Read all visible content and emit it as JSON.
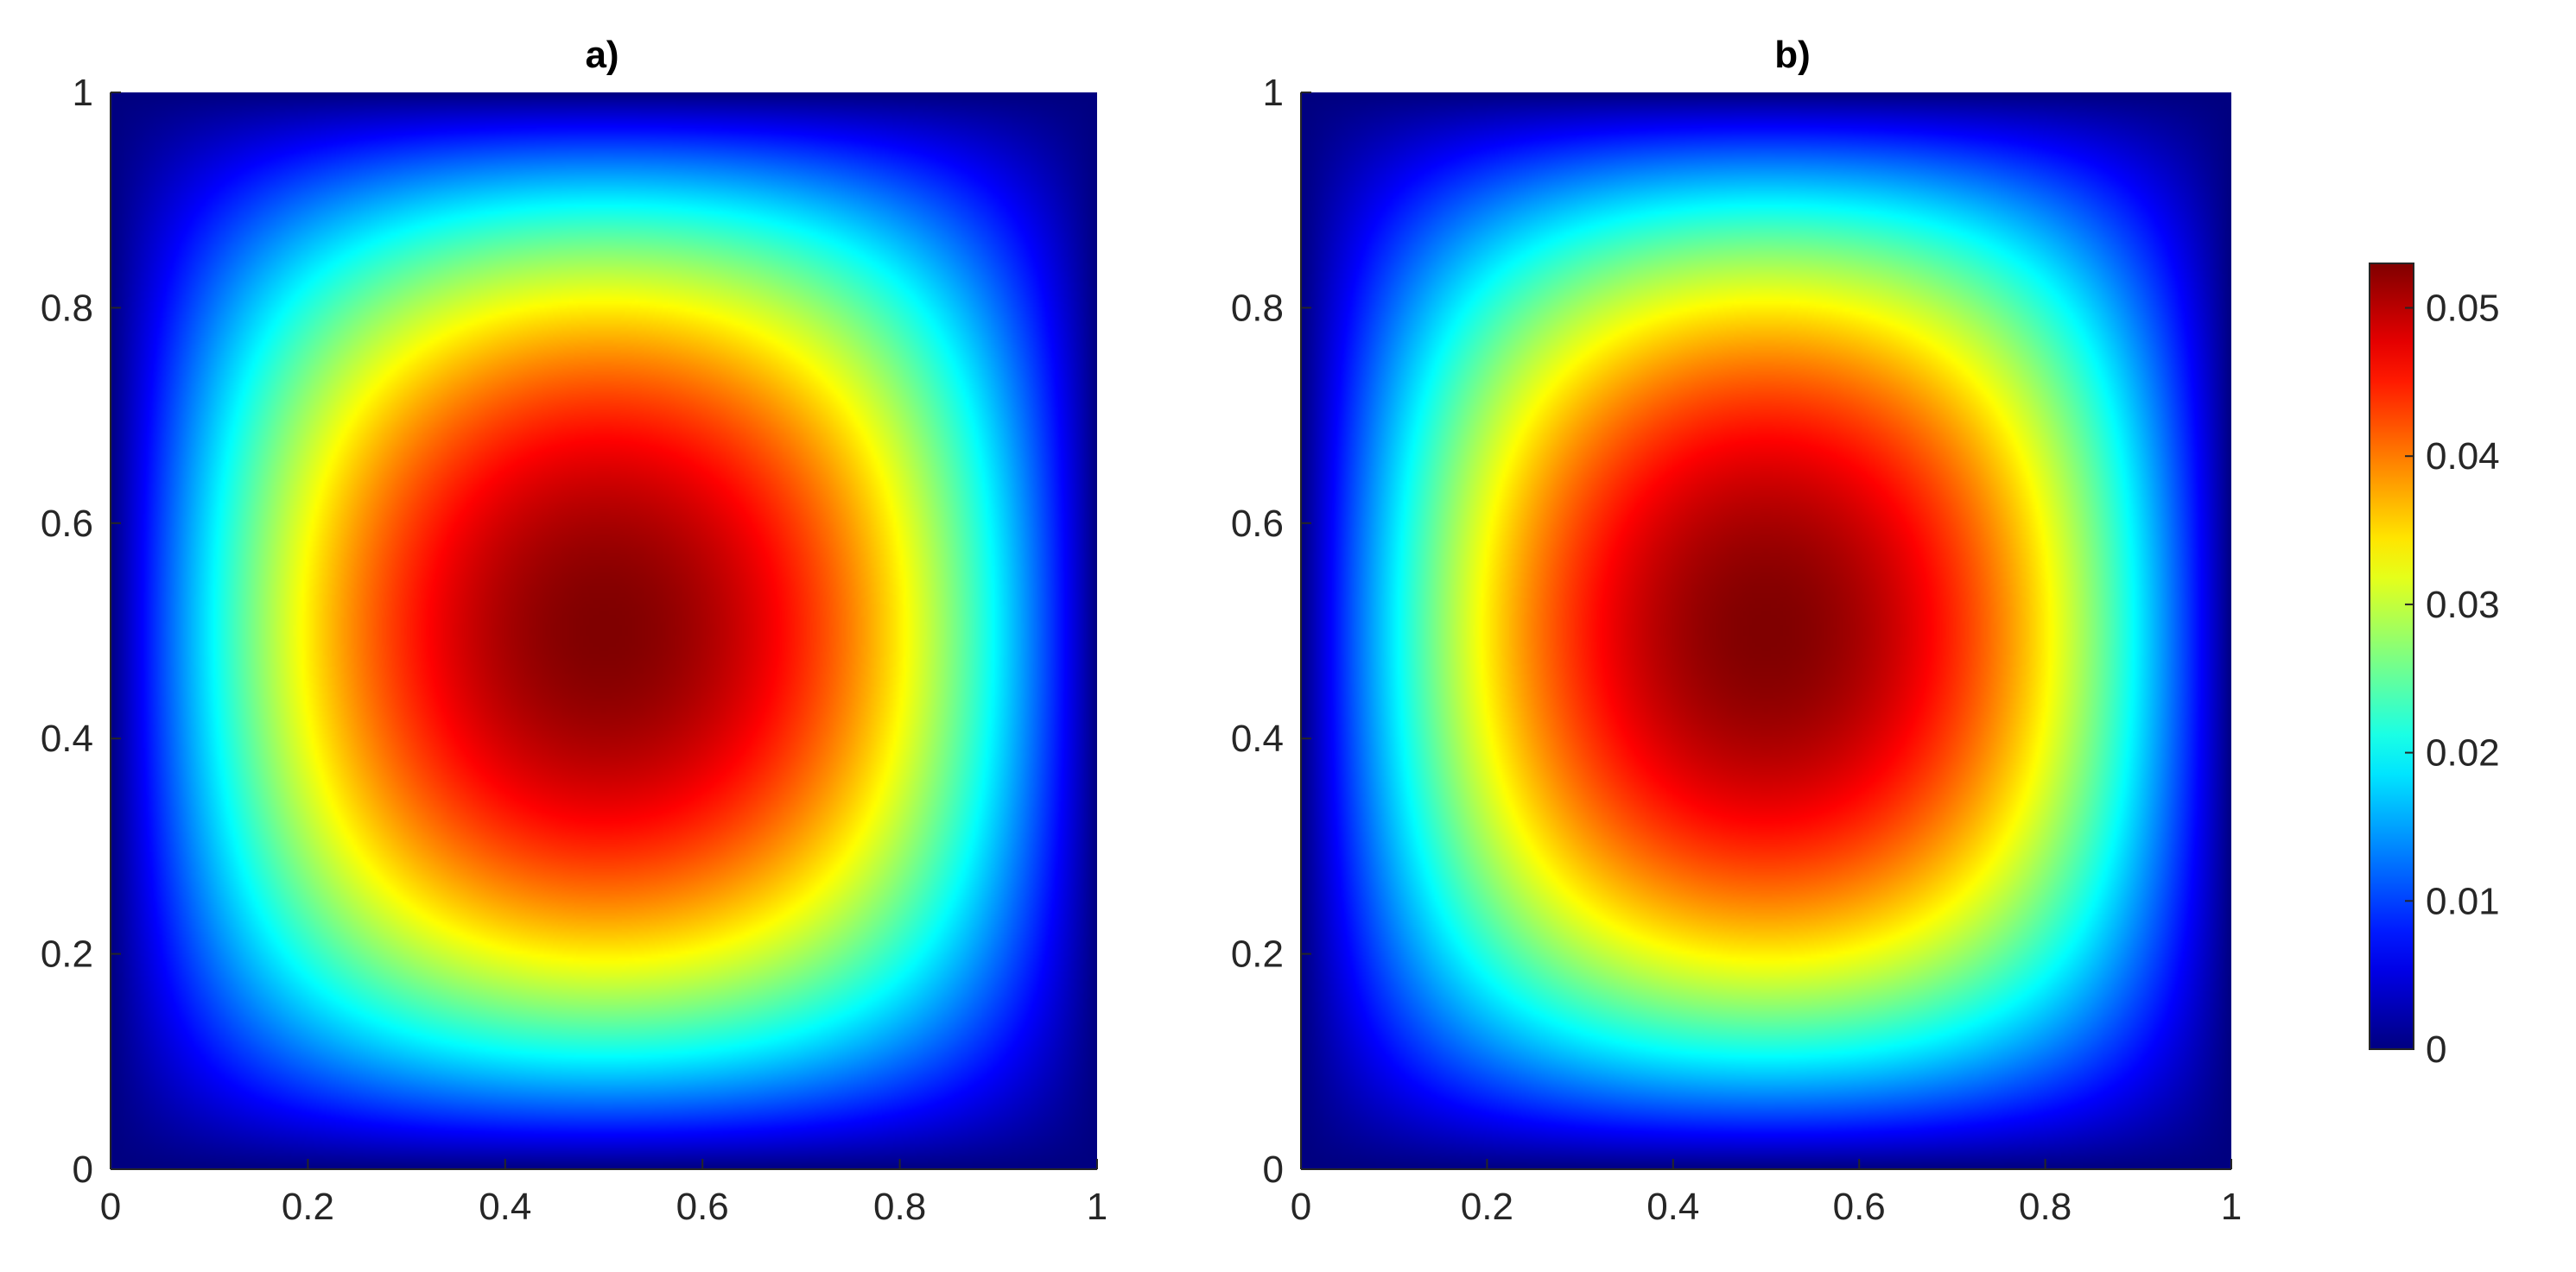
{
  "chart_data": [
    {
      "type": "heatmap",
      "panel": "a)",
      "title": "a)",
      "function": "bubble-shaped field, zero on boundary, max at centre (0.5, 0.5)",
      "center": [
        0.5,
        0.5
      ],
      "max_value": 0.053,
      "boundary_value": 0,
      "xlim": [
        0,
        1
      ],
      "ylim": [
        0,
        1
      ],
      "xticks": [
        0,
        0.2,
        0.4,
        0.6,
        0.8,
        1
      ],
      "yticks": [
        0,
        0.2,
        0.4,
        0.6,
        0.8,
        1
      ],
      "xtick_labels": [
        "0",
        "0.2",
        "0.4",
        "0.6",
        "0.8",
        "1"
      ],
      "ytick_labels": [
        "0",
        "0.2",
        "0.4",
        "0.6",
        "0.8",
        "1"
      ],
      "grid": false
    },
    {
      "type": "heatmap",
      "panel": "b)",
      "title": "b)",
      "function": "bubble-shaped field, zero on boundary, max at centre (0.5, 0.5)",
      "center": [
        0.5,
        0.5
      ],
      "max_value": 0.053,
      "boundary_value": 0,
      "xlim": [
        0,
        1
      ],
      "ylim": [
        0,
        1
      ],
      "xticks": [
        0,
        0.2,
        0.4,
        0.6,
        0.8,
        1
      ],
      "yticks": [
        0,
        0.2,
        0.4,
        0.6,
        0.8,
        1
      ],
      "xtick_labels": [
        "0",
        "0.2",
        "0.4",
        "0.6",
        "0.8",
        "1"
      ],
      "ytick_labels": [
        "0",
        "0.2",
        "0.4",
        "0.6",
        "0.8",
        "1"
      ],
      "grid": false
    }
  ],
  "colorbar": {
    "colormap": "jet",
    "range": [
      0,
      0.053
    ],
    "ticks": [
      0,
      0.01,
      0.02,
      0.03,
      0.04,
      0.05
    ],
    "tick_labels": [
      "0",
      "0.01",
      "0.02",
      "0.03",
      "0.04",
      "0.05"
    ],
    "placement": "right"
  }
}
